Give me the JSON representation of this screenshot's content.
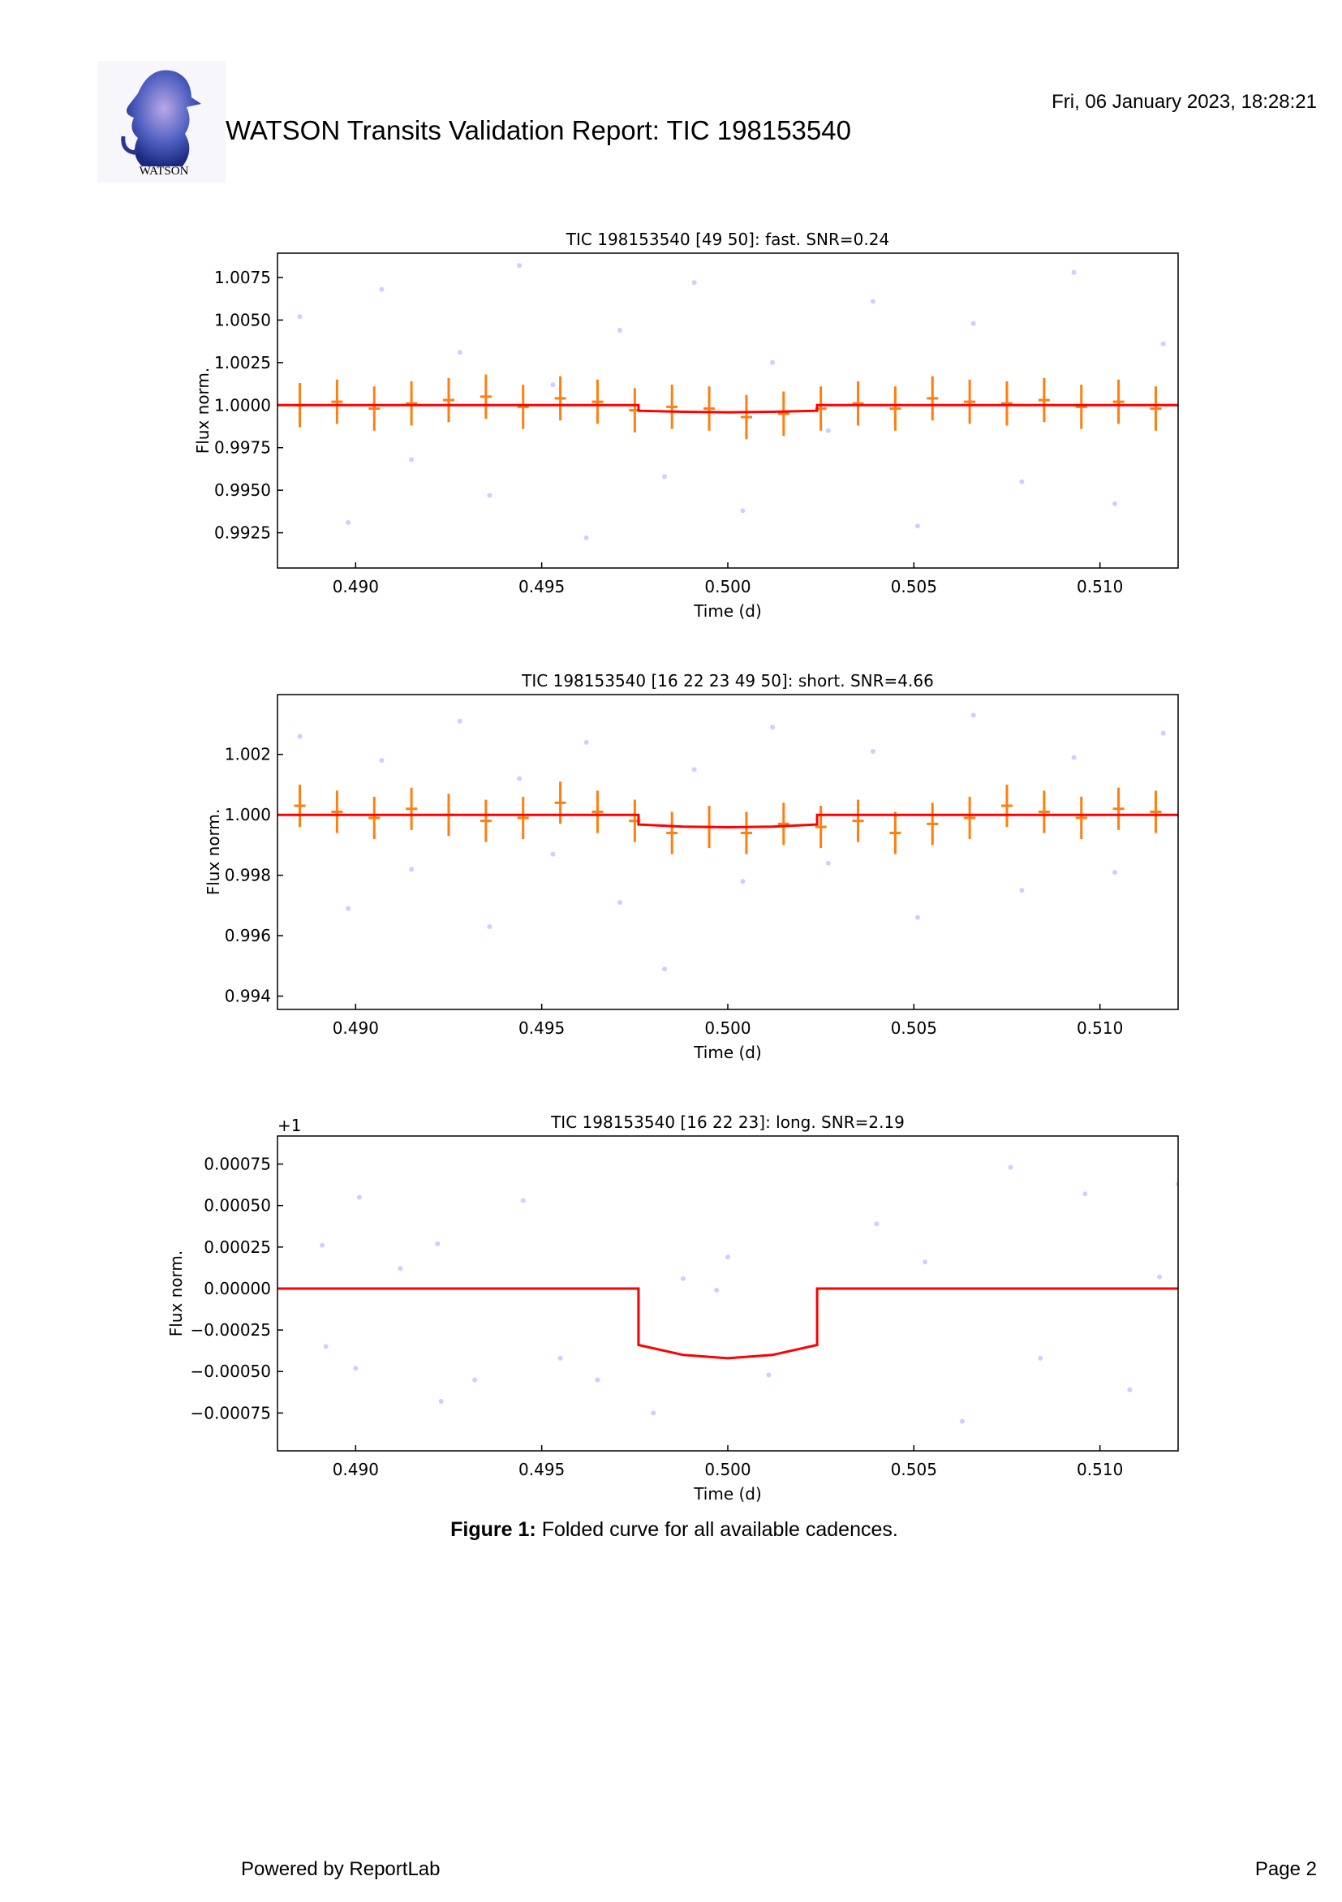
{
  "header": {
    "logo_text": "WATSON",
    "title": "WATSON Transits Validation Report: TIC 198153540",
    "date": "Fri, 06 January 2023, 18:28:21"
  },
  "chart_data": [
    {
      "type": "scatter",
      "title": "TIC 198153540 [49 50]: fast. SNR=0.24",
      "xlabel": "Time (d)",
      "ylabel": "Flux norm.",
      "xlim": [
        0.4879,
        0.5121
      ],
      "ylim": [
        0.99043,
        1.00893
      ],
      "xticks": [
        {
          "value": 0.49,
          "label": "0.490"
        },
        0.495,
        {
          "value": 0.5,
          "label": "0.500"
        },
        0.505,
        {
          "value": 0.51,
          "label": "0.510"
        }
      ],
      "yticks": [
        1.0075,
        {
          "value": 1.005,
          "label": "1.0050"
        },
        1.0025,
        {
          "value": 1,
          "label": "1.0000"
        },
        0.9975,
        {
          "value": 0.995,
          "label": "0.9950"
        },
        0.9925
      ],
      "series": [
        {
          "style": "points",
          "color": "#aab0ff",
          "x": [
            0.4885,
            0.4898,
            0.4907,
            0.4915,
            0.4928,
            0.4936,
            0.4944,
            0.4953,
            0.4962,
            0.4971,
            0.4983,
            0.4991,
            0.5004,
            0.5012,
            0.5027,
            0.5039,
            0.5051,
            0.5066,
            0.5079,
            0.5093,
            0.5104,
            0.5117
          ],
          "values": [
            1.0052,
            0.9931,
            1.0068,
            0.9968,
            1.0031,
            0.9947,
            1.0082,
            1.0012,
            0.9922,
            1.0044,
            0.9958,
            1.0072,
            0.9938,
            1.0025,
            0.9985,
            1.0061,
            0.9929,
            1.0048,
            0.9955,
            1.0078,
            0.9942,
            1.0036
          ]
        },
        {
          "style": "errorbar",
          "color": "#ff7f0e",
          "x": [
            0.4885,
            0.4895,
            0.4905,
            0.4915,
            0.4925,
            0.4935,
            0.4945,
            0.4955,
            0.4965,
            0.4975,
            0.4985,
            0.4995,
            0.5005,
            0.5015,
            0.5025,
            0.5035,
            0.5045,
            0.5055,
            0.5065,
            0.5075,
            0.5085,
            0.5095,
            0.5105,
            0.5115
          ],
          "values": [
            1.0,
            1.0002,
            0.9998,
            1.0001,
            1.0003,
            1.0005,
            0.9999,
            1.0004,
            1.0002,
            0.9997,
            0.9999,
            0.9998,
            0.9993,
            0.9995,
            0.9998,
            1.0001,
            0.9998,
            1.0004,
            1.0002,
            1.0001,
            1.0003,
            0.9999,
            1.0002,
            0.9998
          ],
          "errors": [
            0.0013,
            0.0013,
            0.0013,
            0.0013,
            0.0013,
            0.0013,
            0.0013,
            0.0013,
            0.0013,
            0.0013,
            0.0013,
            0.0013,
            0.0013,
            0.0013,
            0.0013,
            0.0013,
            0.0013,
            0.0013,
            0.0013,
            0.0013,
            0.0013,
            0.0013,
            0.0013,
            0.0013
          ]
        },
        {
          "style": "line",
          "color": "#ff0000",
          "x": [
            0.4879,
            0.4976,
            0.4976,
            0.4988,
            0.5,
            0.5012,
            0.5024,
            0.5024,
            0.5121
          ],
          "values": [
            1,
            1,
            0.99967,
            0.99961,
            0.99958,
            0.99961,
            0.99967,
            1,
            1
          ]
        }
      ]
    },
    {
      "type": "scatter",
      "title": "TIC 198153540 [16 22 23 49 50]: short. SNR=4.66",
      "xlabel": "Time (d)",
      "ylabel": "Flux norm.",
      "xlim": [
        0.4879,
        0.5121
      ],
      "ylim": [
        0.99356,
        1.00398
      ],
      "xticks": [
        {
          "value": 0.49,
          "label": "0.490"
        },
        0.495,
        {
          "value": 0.5,
          "label": "0.500"
        },
        0.505,
        {
          "value": 0.51,
          "label": "0.510"
        }
      ],
      "yticks": [
        1.002,
        {
          "value": 1,
          "label": "1.000"
        },
        0.998,
        0.996,
        0.994
      ],
      "series": [
        {
          "style": "points",
          "color": "#aab0ff",
          "x": [
            0.4885,
            0.4898,
            0.4907,
            0.4915,
            0.4928,
            0.4936,
            0.4944,
            0.4953,
            0.4962,
            0.4971,
            0.4983,
            0.4991,
            0.5004,
            0.5012,
            0.5027,
            0.5039,
            0.5051,
            0.5066,
            0.5079,
            0.5093,
            0.5104,
            0.5117
          ],
          "values": [
            1.0026,
            0.9969,
            1.0018,
            0.9982,
            1.0031,
            0.9963,
            1.0012,
            0.9987,
            1.0024,
            0.9971,
            0.9949,
            1.0015,
            0.9978,
            1.0029,
            0.9984,
            1.0021,
            0.9966,
            1.0033,
            0.9975,
            1.0019,
            0.9981,
            1.0027
          ]
        },
        {
          "style": "errorbar",
          "color": "#ff7f0e",
          "x": [
            0.4885,
            0.4895,
            0.4905,
            0.4915,
            0.4925,
            0.4935,
            0.4945,
            0.4955,
            0.4965,
            0.4975,
            0.4985,
            0.4995,
            0.5005,
            0.5015,
            0.5025,
            0.5035,
            0.5045,
            0.5055,
            0.5065,
            0.5075,
            0.5085,
            0.5095,
            0.5105,
            0.5115
          ],
          "values": [
            1.0003,
            1.0001,
            0.9999,
            1.0002,
            1.0,
            0.9998,
            0.9999,
            1.0004,
            1.0001,
            0.9998,
            0.9994,
            0.9996,
            0.9994,
            0.9997,
            0.9996,
            0.9998,
            0.9994,
            0.9997,
            0.9999,
            1.0003,
            1.0001,
            0.9999,
            1.0002,
            1.0001
          ],
          "errors": [
            0.0007,
            0.0007,
            0.0007,
            0.0007,
            0.0007,
            0.0007,
            0.0007,
            0.0007,
            0.0007,
            0.0007,
            0.0007,
            0.0007,
            0.0007,
            0.0007,
            0.0007,
            0.0007,
            0.0007,
            0.0007,
            0.0007,
            0.0007,
            0.0007,
            0.0007,
            0.0007,
            0.0007
          ]
        },
        {
          "style": "line",
          "color": "#ff0000",
          "x": [
            0.4879,
            0.4976,
            0.4976,
            0.4988,
            0.5,
            0.5012,
            0.5024,
            0.5024,
            0.5121
          ],
          "values": [
            1,
            1,
            0.99968,
            0.99961,
            0.99959,
            0.99961,
            0.99968,
            1,
            1
          ]
        }
      ]
    },
    {
      "type": "scatter",
      "title": "TIC 198153540 [16 22 23]: long. SNR=2.19",
      "xlabel": "Time (d)",
      "ylabel": "Flux norm.",
      "y_offset_label": "+1",
      "xlim": [
        0.4879,
        0.5121
      ],
      "ylim": [
        -0.000978,
        0.000919
      ],
      "xticks": [
        {
          "value": 0.49,
          "label": "0.490"
        },
        0.495,
        {
          "value": 0.5,
          "label": "0.500"
        },
        0.505,
        {
          "value": 0.51,
          "label": "0.510"
        }
      ],
      "yticks": [
        0.00075,
        {
          "value": 0.0005,
          "label": "0.00050"
        },
        0.00025,
        {
          "value": 0,
          "label": "0.00000"
        },
        {
          "value": -0.00025,
          "label": "−0.00025"
        },
        {
          "value": -0.0005,
          "label": "−0.00050"
        },
        {
          "value": -0.00075,
          "label": "−0.00075"
        }
      ],
      "series": [
        {
          "style": "points",
          "color": "#aab0ff",
          "x": [
            0.4891,
            0.4892,
            0.4901,
            0.49,
            0.4912,
            0.4922,
            0.4923,
            0.4932,
            0.4945,
            0.4955,
            0.4965,
            0.498,
            0.4988,
            0.4997,
            0.5,
            0.5011,
            0.504,
            0.5053,
            0.5063,
            0.5076,
            0.5084,
            0.5096,
            0.5108,
            0.5116,
            0.5121
          ],
          "values": [
            0.00026,
            -0.00035,
            0.00055,
            -0.00048,
            0.00012,
            0.00027,
            -0.00068,
            -0.00055,
            0.00053,
            -0.00042,
            -0.00055,
            -0.00075,
            6e-05,
            -1e-05,
            0.00019,
            -0.00052,
            0.00039,
            0.00016,
            -0.0008,
            0.00073,
            -0.00042,
            0.00057,
            -0.00061,
            7e-05,
            0.00063
          ]
        },
        {
          "style": "line",
          "color": "#ff0000",
          "x": [
            0.4879,
            0.4976,
            0.4976,
            0.4988,
            0.5,
            0.5012,
            0.5024,
            0.5024,
            0.5121
          ],
          "values": [
            0,
            0,
            -0.00034,
            -0.0004,
            -0.00042,
            -0.0004,
            -0.00034,
            0,
            0
          ]
        }
      ]
    }
  ],
  "caption": {
    "label": "Figure 1:",
    "text": "Folded curve for all available cadences."
  },
  "footer": {
    "left": "Powered by ReportLab",
    "right": "Page 2"
  }
}
